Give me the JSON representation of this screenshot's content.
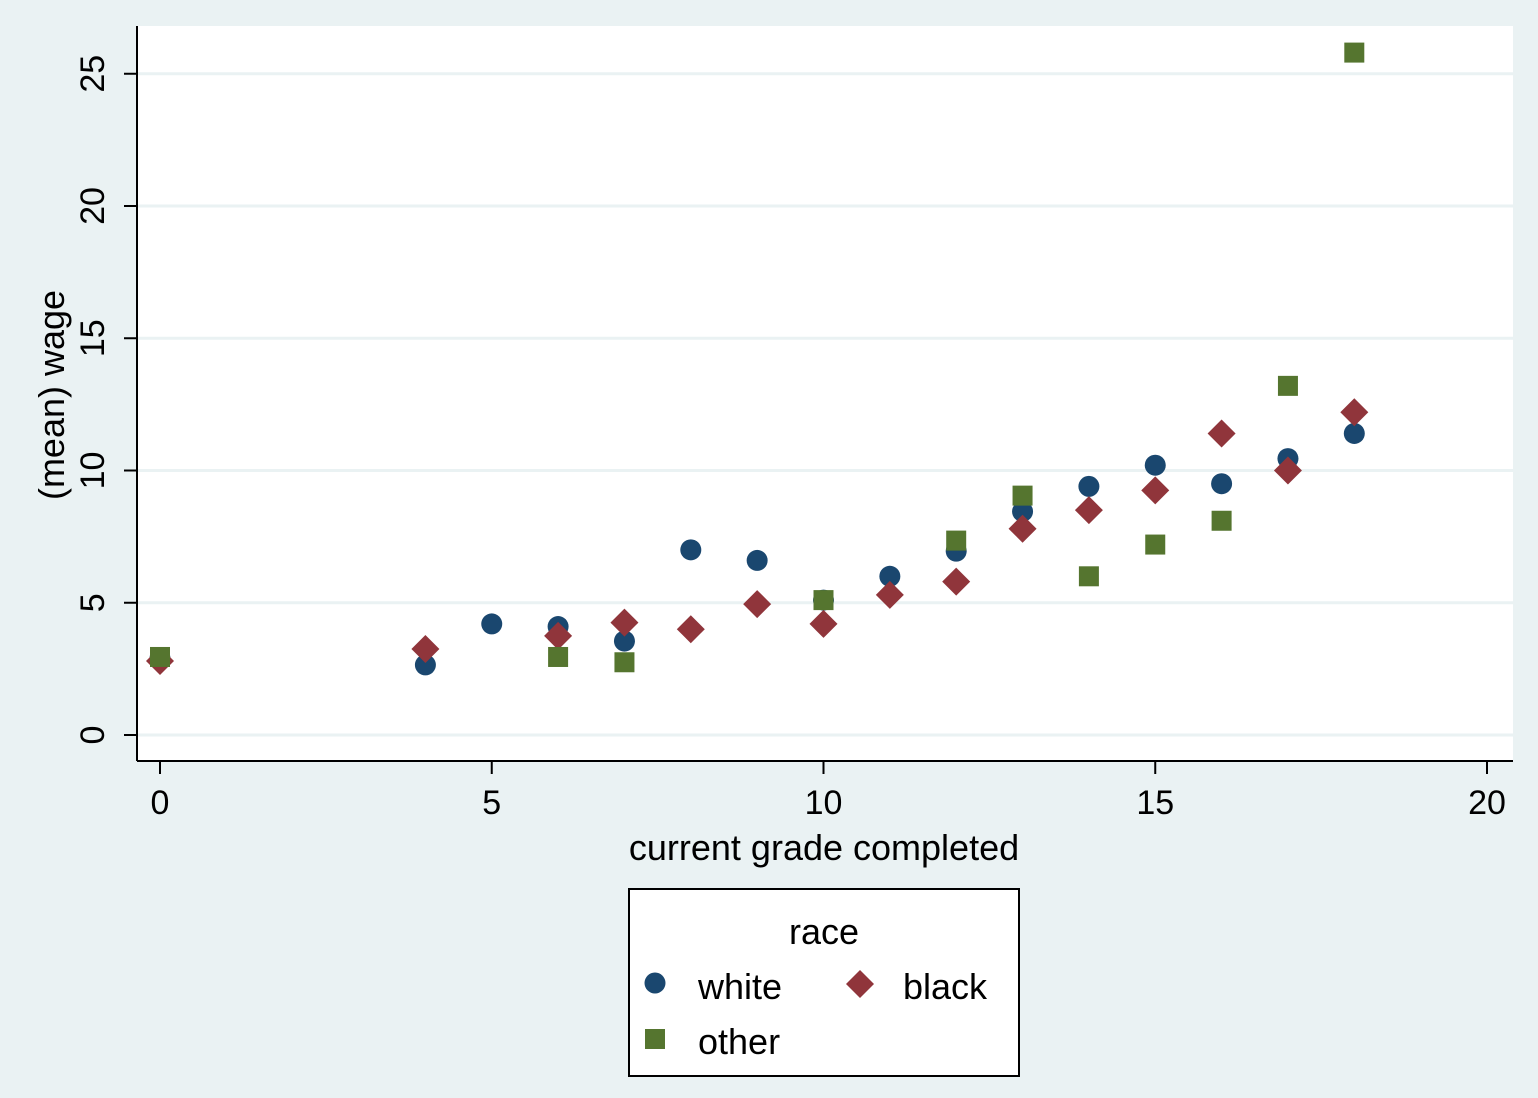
{
  "chart_data": {
    "type": "scatter",
    "xlabel": "current grade completed",
    "ylabel": "(mean) wage",
    "xlim": [
      0,
      20
    ],
    "ylim": [
      0,
      26
    ],
    "xticks": [
      0,
      5,
      10,
      15,
      20
    ],
    "yticks": [
      0,
      5,
      10,
      15,
      20,
      25
    ],
    "grid": "horizontal",
    "legend": {
      "title": "race",
      "placement": "bottom"
    },
    "series": [
      {
        "name": "white",
        "marker": "circle",
        "color": "#1a476f",
        "x": [
          0,
          4,
          5,
          6,
          7,
          8,
          9,
          10,
          11,
          12,
          13,
          14,
          15,
          16,
          17,
          18
        ],
        "y": [
          2.9,
          2.65,
          4.2,
          4.1,
          3.55,
          7.0,
          6.6,
          5.1,
          6.0,
          6.95,
          8.45,
          9.4,
          10.2,
          9.5,
          10.45,
          11.4
        ]
      },
      {
        "name": "black",
        "marker": "diamond",
        "color": "#90353b",
        "x": [
          0,
          4,
          6,
          7,
          8,
          9,
          10,
          11,
          12,
          13,
          14,
          15,
          16,
          17,
          18
        ],
        "y": [
          2.8,
          3.25,
          3.75,
          4.25,
          4.0,
          4.95,
          4.2,
          5.3,
          5.8,
          7.8,
          8.5,
          9.25,
          11.4,
          10.0,
          12.2
        ]
      },
      {
        "name": "other",
        "marker": "square",
        "color": "#55752f",
        "x": [
          0,
          6,
          7,
          10,
          12,
          13,
          14,
          15,
          16,
          17,
          18
        ],
        "y": [
          2.95,
          2.95,
          2.75,
          5.1,
          7.35,
          9.05,
          6.0,
          7.2,
          8.1,
          13.2,
          25.8
        ]
      }
    ]
  }
}
